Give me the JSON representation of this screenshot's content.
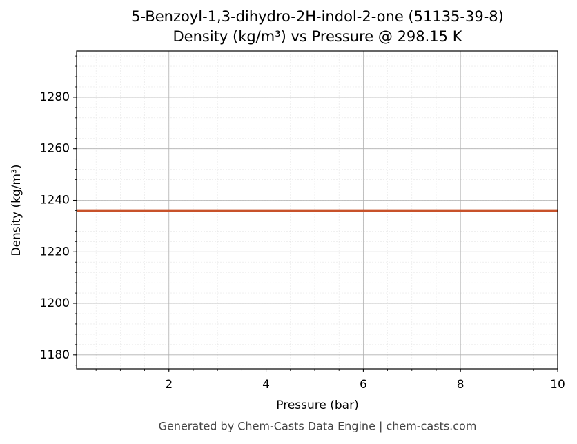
{
  "chart_data": {
    "type": "line",
    "title": "5-Benzoyl-1,3-dihydro-2H-indol-2-one (51135-39-8)",
    "subtitle": "Density (kg/m³) vs Pressure @ 298.15 K",
    "x_label": "Pressure (bar)",
    "y_label": "Density (kg/m³)",
    "footer": "Generated by Chem-Casts Data Engine | chem-casts.com",
    "x": [
      0.1,
      10
    ],
    "series": [
      {
        "name": "Density",
        "color": "#c8522a",
        "values": [
          1236,
          1236
        ]
      }
    ],
    "xlim": [
      0.1,
      10
    ],
    "ylim": [
      1174.6,
      1297.9
    ],
    "xticks": [
      2,
      4,
      6,
      8,
      10
    ],
    "yticks": [
      1180,
      1200,
      1220,
      1240,
      1260,
      1280
    ],
    "grid": true,
    "minor_grid": true
  }
}
